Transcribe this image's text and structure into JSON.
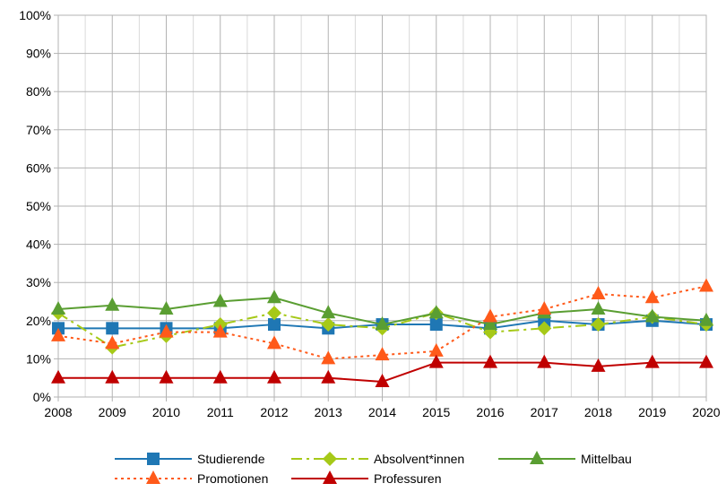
{
  "chart_data": {
    "type": "line",
    "title": "",
    "xlabel": "",
    "ylabel": "",
    "x": [
      "2008",
      "2009",
      "2010",
      "2011",
      "2012",
      "2013",
      "2014",
      "2015",
      "2016",
      "2017",
      "2018",
      "2019",
      "2020"
    ],
    "ylim": [
      0,
      100
    ],
    "yticks": [
      "0%",
      "10%",
      "20%",
      "30%",
      "40%",
      "50%",
      "60%",
      "70%",
      "80%",
      "90%",
      "100%"
    ],
    "grid": true,
    "legend_position": "bottom",
    "series": [
      {
        "name": "Studierende",
        "color": "#1f77b4",
        "dash": "solid",
        "marker": "square",
        "values": [
          18,
          18,
          18,
          18,
          19,
          18,
          19,
          19,
          18,
          20,
          19,
          20,
          19
        ]
      },
      {
        "name": "Absolvent*innen",
        "color": "#a6c918",
        "dash": "dashdot",
        "marker": "diamond",
        "values": [
          22,
          13,
          16,
          19,
          22,
          19,
          18,
          22,
          17,
          18,
          19,
          21,
          19
        ]
      },
      {
        "name": "Mittelbau",
        "color": "#5a9e32",
        "dash": "solid",
        "marker": "triangle",
        "values": [
          23,
          24,
          23,
          25,
          26,
          22,
          19,
          22,
          19,
          22,
          23,
          21,
          20
        ]
      },
      {
        "name": "Promotionen",
        "color": "#ff5a1a",
        "dash": "dotted",
        "marker": "triangle",
        "values": [
          16,
          14,
          17,
          17,
          14,
          10,
          11,
          12,
          21,
          23,
          27,
          26,
          29
        ]
      },
      {
        "name": "Professuren",
        "color": "#c00000",
        "dash": "solid",
        "marker": "triangle",
        "values": [
          5,
          5,
          5,
          5,
          5,
          5,
          4,
          9,
          9,
          9,
          8,
          9,
          9
        ]
      }
    ]
  }
}
